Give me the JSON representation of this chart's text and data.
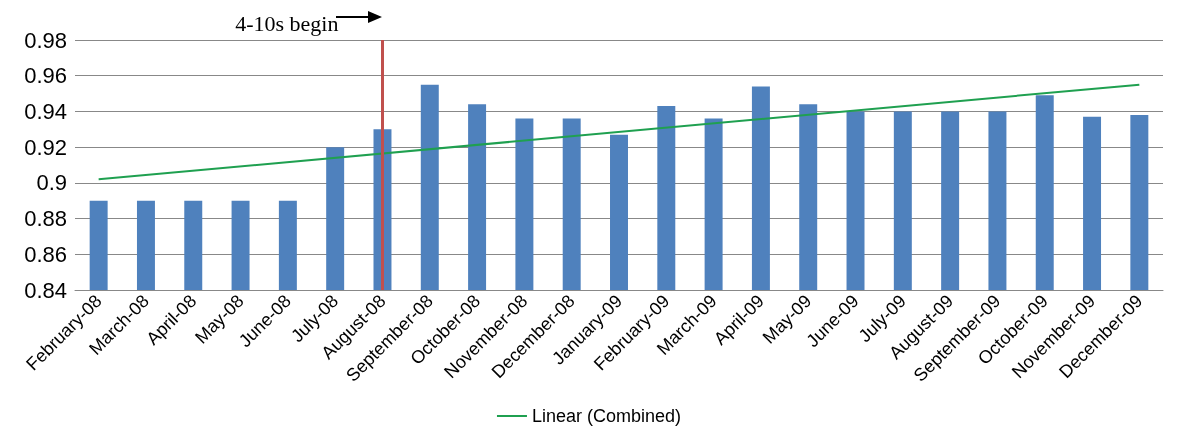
{
  "chart_data": {
    "type": "bar",
    "categories": [
      "February-08",
      "March-08",
      "April-08",
      "May-08",
      "June-08",
      "July-08",
      "August-08",
      "September-08",
      "October-08",
      "November-08",
      "December-08",
      "January-09",
      "February-09",
      "March-09",
      "April-09",
      "May-09",
      "June-09",
      "July-09",
      "August-09",
      "September-09",
      "October-09",
      "November-09",
      "December-09"
    ],
    "series": [
      {
        "color": "#4f81bd",
        "values": [
          0.89,
          0.89,
          0.89,
          0.89,
          0.89,
          0.92,
          0.93,
          0.955,
          0.944,
          0.936,
          0.936,
          0.927,
          0.943,
          0.936,
          0.954,
          0.944,
          0.94,
          0.94,
          0.94,
          0.94,
          0.949,
          0.937,
          0.938
        ]
      },
      {
        "type": "line",
        "name": "Linear (Combined)",
        "color": "#1fa050",
        "x": [
          "February-08",
          "December-09"
        ],
        "values": [
          0.902,
          0.955
        ]
      }
    ],
    "ylim": [
      0.84,
      0.98
    ],
    "yticks": [
      0.84,
      0.86,
      0.88,
      0.9,
      0.92,
      0.94,
      0.96,
      0.98
    ],
    "grid": "y",
    "legend": "bottom",
    "marker": "none",
    "ref_lines": [
      {
        "axis": "x",
        "value": "August-08",
        "label": "4-10s begin",
        "color": "#c0504d"
      }
    ]
  }
}
